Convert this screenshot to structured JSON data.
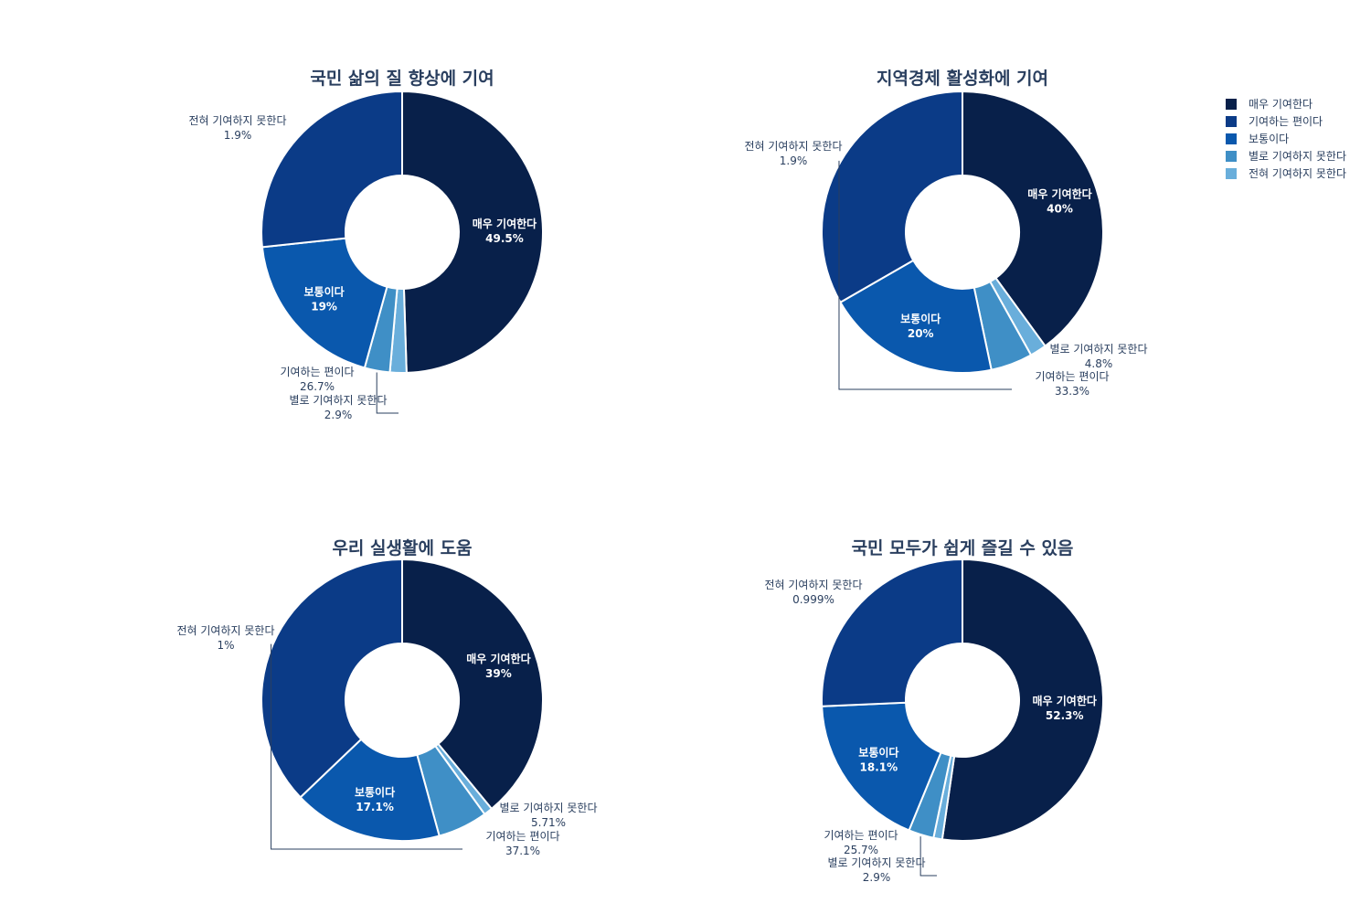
{
  "legend": {
    "placement": "top-right",
    "items": [
      {
        "label": "매우 기여한다",
        "color": "#08204a"
      },
      {
        "label": "기여하는 편이다",
        "color": "#0b3b87"
      },
      {
        "label": "보통이다",
        "color": "#0a58ad"
      },
      {
        "label": "별로 기여하지 못한다",
        "color": "#3f8fc6"
      },
      {
        "label": "전혀 기여하지 못한다",
        "color": "#69aedb"
      }
    ]
  },
  "chart_data": [
    {
      "type": "pie",
      "hole": true,
      "title": "국민 삶의 질 향상에 기여",
      "slices": [
        {
          "label": "매우 기여한다",
          "value": 49.5,
          "text": "49.5%",
          "inside": true
        },
        {
          "label": "전혀 기여하지 못한다",
          "value": 1.9,
          "text": "1.9%",
          "inside": false
        },
        {
          "label": "별로 기여하지 못한다",
          "value": 2.9,
          "text": "2.9%",
          "inside": false
        },
        {
          "label": "보통이다",
          "value": 19.0,
          "text": "19%",
          "inside": true
        },
        {
          "label": "기여하는 편이다",
          "value": 26.7,
          "text": "26.7%",
          "inside": false
        }
      ]
    },
    {
      "type": "pie",
      "hole": true,
      "title": "지역경제 활성화에 기여",
      "slices": [
        {
          "label": "매우 기여한다",
          "value": 40.0,
          "text": "40%",
          "inside": true
        },
        {
          "label": "전혀 기여하지 못한다",
          "value": 1.9,
          "text": "1.9%",
          "inside": false
        },
        {
          "label": "별로 기여하지 못한다",
          "value": 4.8,
          "text": "4.8%",
          "inside": false
        },
        {
          "label": "보통이다",
          "value": 20.0,
          "text": "20%",
          "inside": true
        },
        {
          "label": "기여하는 편이다",
          "value": 33.3,
          "text": "33.3%",
          "inside": false
        }
      ]
    },
    {
      "type": "pie",
      "hole": true,
      "title": "우리 실생활에 도움",
      "slices": [
        {
          "label": "매우 기여한다",
          "value": 39.0,
          "text": "39%",
          "inside": true
        },
        {
          "label": "전혀 기여하지 못한다",
          "value": 1.0,
          "text": "1%",
          "inside": false
        },
        {
          "label": "별로 기여하지 못한다",
          "value": 5.71,
          "text": "5.71%",
          "inside": false
        },
        {
          "label": "보통이다",
          "value": 17.1,
          "text": "17.1%",
          "inside": true
        },
        {
          "label": "기여하는 편이다",
          "value": 37.1,
          "text": "37.1%",
          "inside": false
        }
      ]
    },
    {
      "type": "pie",
      "hole": true,
      "title": "국민 모두가 쉽게 즐길 수 있음",
      "slices": [
        {
          "label": "매우 기여한다",
          "value": 52.3,
          "text": "52.3%",
          "inside": true
        },
        {
          "label": "전혀 기여하지 못한다",
          "value": 0.999,
          "text": "0.999%",
          "inside": false
        },
        {
          "label": "별로 기여하지 못한다",
          "value": 2.9,
          "text": "2.9%",
          "inside": false
        },
        {
          "label": "보통이다",
          "value": 18.1,
          "text": "18.1%",
          "inside": true
        },
        {
          "label": "기여하는 편이다",
          "value": 25.7,
          "text": "25.7%",
          "inside": false
        }
      ]
    }
  ]
}
